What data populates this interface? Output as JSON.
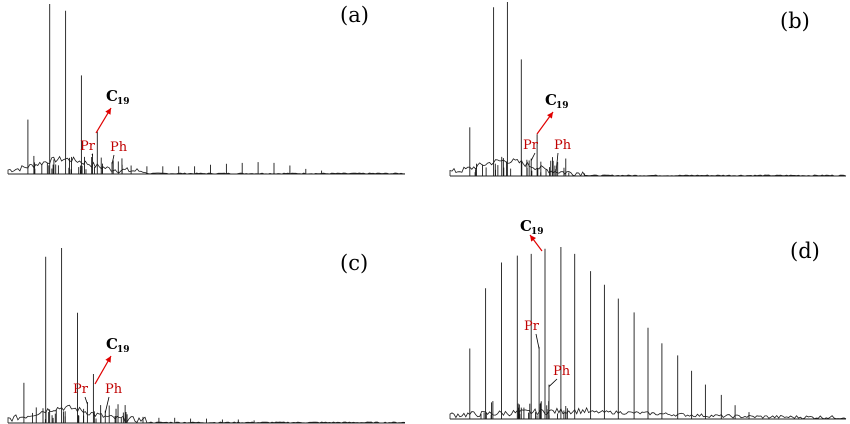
{
  "chart_data": [
    {
      "type": "line",
      "panel_label": "(a)",
      "peak_labels": {
        "c19": "C",
        "c19_sub": "19",
        "pr": "Pr",
        "ph": "Ph"
      },
      "nalkanes": [
        {
          "rt": 0.05,
          "h": 0.32
        },
        {
          "rt": 0.105,
          "h": 1.0
        },
        {
          "rt": 0.145,
          "h": 0.96
        },
        {
          "rt": 0.185,
          "h": 0.58
        },
        {
          "rt": 0.225,
          "h": 0.25
        },
        {
          "rt": 0.265,
          "h": 0.08
        },
        {
          "rt": 0.31,
          "h": 0.05
        },
        {
          "rt": 0.35,
          "h": 0.045
        },
        {
          "rt": 0.39,
          "h": 0.045
        },
        {
          "rt": 0.43,
          "h": 0.045
        },
        {
          "rt": 0.47,
          "h": 0.045
        },
        {
          "rt": 0.51,
          "h": 0.055
        },
        {
          "rt": 0.55,
          "h": 0.06
        },
        {
          "rt": 0.59,
          "h": 0.065
        },
        {
          "rt": 0.63,
          "h": 0.07
        },
        {
          "rt": 0.67,
          "h": 0.065
        },
        {
          "rt": 0.71,
          "h": 0.05
        },
        {
          "rt": 0.75,
          "h": 0.03
        },
        {
          "rt": 0.79,
          "h": 0.02
        }
      ],
      "pr": {
        "rt": 0.213,
        "h": 0.12
      },
      "ph": {
        "rt": 0.262,
        "h": 0.07
      }
    },
    {
      "type": "line",
      "panel_label": "(b)",
      "peak_labels": {
        "c19": "C",
        "c19_sub": "19",
        "pr": "Pr",
        "ph": "Ph"
      },
      "nalkanes": [
        {
          "rt": 0.05,
          "h": 0.28
        },
        {
          "rt": 0.11,
          "h": 0.97
        },
        {
          "rt": 0.145,
          "h": 1.0
        },
        {
          "rt": 0.18,
          "h": 0.67
        },
        {
          "rt": 0.22,
          "h": 0.24
        },
        {
          "rt": 0.265,
          "h": 0.06
        },
        {
          "rt": 0.3,
          "h": 0.02
        },
        {
          "rt": 0.34,
          "h": 0.015
        }
      ],
      "pr": {
        "rt": 0.205,
        "h": 0.1
      },
      "ph": {
        "rt": 0.268,
        "h": 0.04
      }
    },
    {
      "type": "line",
      "panel_label": "(c)",
      "peak_labels": {
        "c19": "C",
        "c19_sub": "19",
        "pr": "Pr",
        "ph": "Ph"
      },
      "nalkanes": [
        {
          "rt": 0.04,
          "h": 0.23
        },
        {
          "rt": 0.095,
          "h": 0.95
        },
        {
          "rt": 0.135,
          "h": 1.0
        },
        {
          "rt": 0.175,
          "h": 0.63
        },
        {
          "rt": 0.215,
          "h": 0.28
        },
        {
          "rt": 0.255,
          "h": 0.1
        },
        {
          "rt": 0.3,
          "h": 0.05
        },
        {
          "rt": 0.34,
          "h": 0.035
        },
        {
          "rt": 0.38,
          "h": 0.03
        },
        {
          "rt": 0.42,
          "h": 0.03
        },
        {
          "rt": 0.46,
          "h": 0.025
        },
        {
          "rt": 0.5,
          "h": 0.025
        },
        {
          "rt": 0.54,
          "h": 0.02
        },
        {
          "rt": 0.58,
          "h": 0.02
        },
        {
          "rt": 0.62,
          "h": 0.015
        }
      ],
      "pr": {
        "rt": 0.2,
        "h": 0.12
      },
      "ph": {
        "rt": 0.245,
        "h": 0.07
      }
    },
    {
      "type": "line",
      "panel_label": "(d)",
      "peak_labels": {
        "c19": "C",
        "c19_sub": "19",
        "pr": "Pr",
        "ph": "Ph"
      },
      "nalkanes": [
        {
          "rt": 0.05,
          "h": 0.41
        },
        {
          "rt": 0.09,
          "h": 0.76
        },
        {
          "rt": 0.13,
          "h": 0.91
        },
        {
          "rt": 0.17,
          "h": 0.95
        },
        {
          "rt": 0.205,
          "h": 0.96
        },
        {
          "rt": 0.24,
          "h": 0.99
        },
        {
          "rt": 0.28,
          "h": 1.0
        },
        {
          "rt": 0.315,
          "h": 0.96
        },
        {
          "rt": 0.355,
          "h": 0.86
        },
        {
          "rt": 0.39,
          "h": 0.78
        },
        {
          "rt": 0.425,
          "h": 0.7
        },
        {
          "rt": 0.465,
          "h": 0.62
        },
        {
          "rt": 0.5,
          "h": 0.53
        },
        {
          "rt": 0.535,
          "h": 0.44
        },
        {
          "rt": 0.575,
          "h": 0.37
        },
        {
          "rt": 0.61,
          "h": 0.28
        },
        {
          "rt": 0.645,
          "h": 0.2
        },
        {
          "rt": 0.685,
          "h": 0.14
        },
        {
          "rt": 0.72,
          "h": 0.08
        },
        {
          "rt": 0.755,
          "h": 0.04
        }
      ],
      "pr": {
        "rt": 0.225,
        "h": 0.42
      },
      "ph": {
        "rt": 0.25,
        "h": 0.2
      }
    }
  ]
}
